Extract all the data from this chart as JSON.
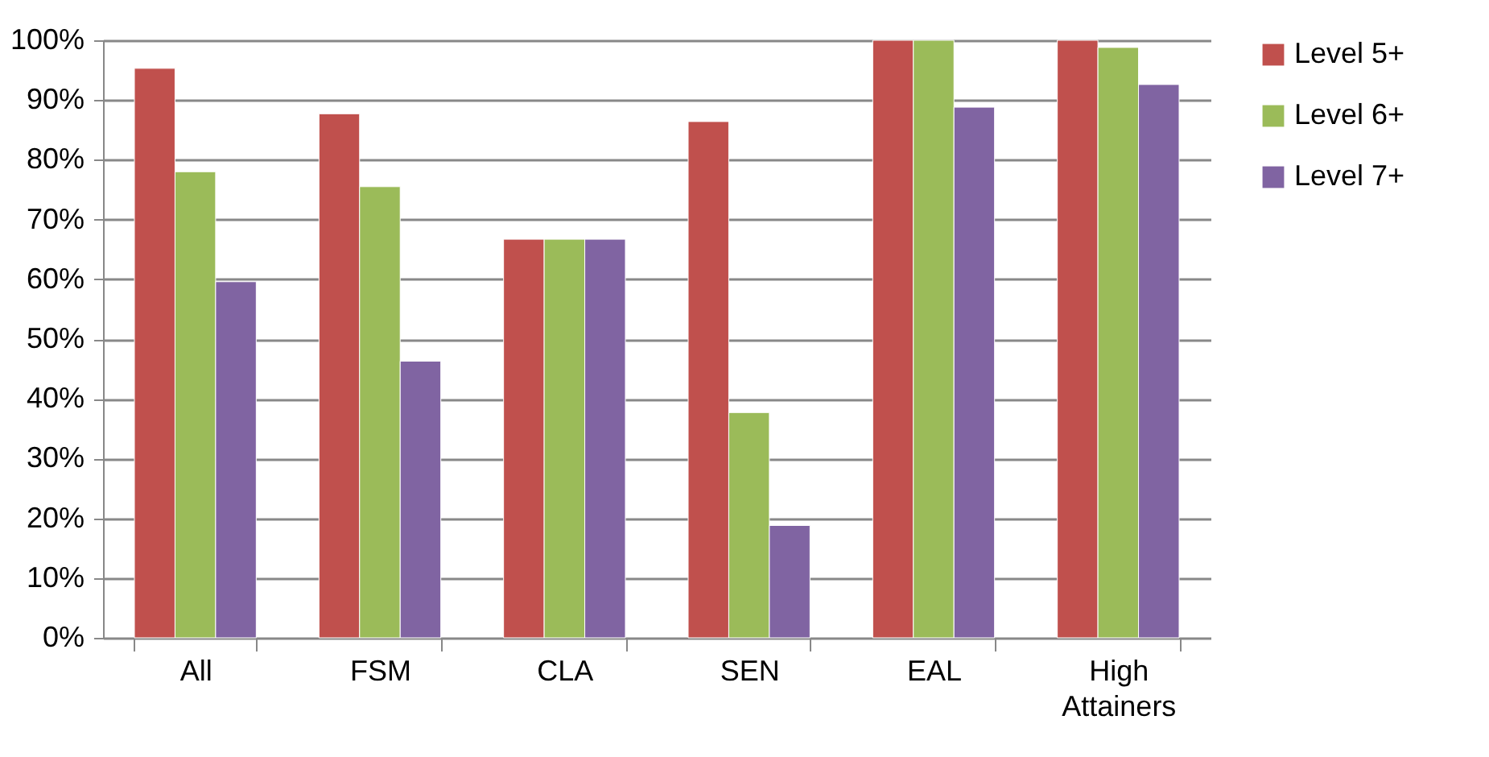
{
  "chart_data": {
    "type": "bar",
    "categories": [
      "All",
      "FSM",
      "CLA",
      "SEN",
      "EAL",
      "High Attainers"
    ],
    "series": [
      {
        "name": "Level 5+",
        "color": "#c0504d",
        "values": [
          95.3,
          87.7,
          66.7,
          86.4,
          100,
          100
        ]
      },
      {
        "name": "Level 6+",
        "color": "#9bbb59",
        "values": [
          78.0,
          75.5,
          66.7,
          37.7,
          100,
          98.8
        ]
      },
      {
        "name": "Level 7+",
        "color": "#8064a2",
        "values": [
          59.6,
          46.3,
          66.7,
          18.8,
          88.8,
          92.6
        ]
      }
    ],
    "ylim": [
      0,
      100
    ],
    "yticks": [
      {
        "value": 0,
        "label": "0%"
      },
      {
        "value": 10,
        "label": "10%"
      },
      {
        "value": 20,
        "label": "20%"
      },
      {
        "value": 30,
        "label": "30%"
      },
      {
        "value": 40,
        "label": "40%"
      },
      {
        "value": 50,
        "label": "50%"
      },
      {
        "value": 60,
        "label": "60%"
      },
      {
        "value": 70,
        "label": "70%"
      },
      {
        "value": 80,
        "label": "80%"
      },
      {
        "value": 90,
        "label": "90%"
      },
      {
        "value": 100,
        "label": "100%"
      }
    ],
    "grid": "y",
    "legend": "right"
  }
}
